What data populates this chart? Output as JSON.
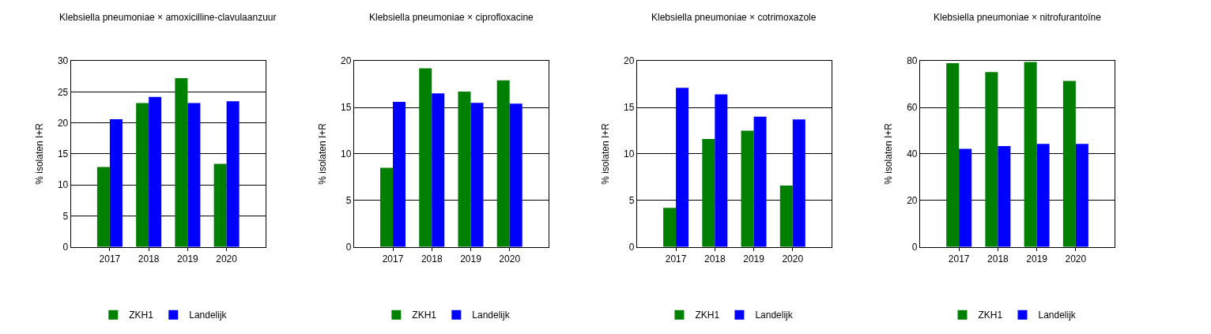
{
  "chart_data": [
    {
      "type": "bar",
      "title": "Klebsiella pneumoniae × amoxicilline-clavulaanzuur",
      "ylabel": "% isolaten I+R",
      "categories": [
        "2017",
        "2018",
        "2019",
        "2020"
      ],
      "ylim": [
        0,
        30
      ],
      "yticks": [
        0,
        5,
        10,
        15,
        20,
        25,
        30
      ],
      "grid": "y",
      "legend": "bottom",
      "series": [
        {
          "name": "ZKH1",
          "color": "#008000",
          "values": [
            12.9,
            23.2,
            27.2,
            13.4
          ]
        },
        {
          "name": "Landelijk",
          "color": "#0000ff",
          "values": [
            20.6,
            24.2,
            23.2,
            23.5
          ]
        }
      ]
    },
    {
      "type": "bar",
      "title": "Klebsiella pneumoniae × ciprofloxacine",
      "ylabel": "% isolaten I+R",
      "categories": [
        "2017",
        "2018",
        "2019",
        "2020"
      ],
      "ylim": [
        0,
        20
      ],
      "yticks": [
        0,
        5,
        10,
        15,
        20
      ],
      "grid": "y",
      "legend": "bottom",
      "series": [
        {
          "name": "ZKH1",
          "color": "#008000",
          "values": [
            8.5,
            19.2,
            16.7,
            17.9
          ]
        },
        {
          "name": "Landelijk",
          "color": "#0000ff",
          "values": [
            15.6,
            16.5,
            15.5,
            15.4
          ]
        }
      ]
    },
    {
      "type": "bar",
      "title": "Klebsiella pneumoniae × cotrimoxazole",
      "ylabel": "% isolaten I+R",
      "categories": [
        "2017",
        "2018",
        "2019",
        "2020"
      ],
      "ylim": [
        0,
        20
      ],
      "yticks": [
        0,
        5,
        10,
        15,
        20
      ],
      "grid": "y",
      "legend": "bottom",
      "series": [
        {
          "name": "ZKH1",
          "color": "#008000",
          "values": [
            4.2,
            11.6,
            12.5,
            6.6
          ]
        },
        {
          "name": "Landelijk",
          "color": "#0000ff",
          "values": [
            17.1,
            16.4,
            14.0,
            13.7
          ]
        }
      ]
    },
    {
      "type": "bar",
      "title": "Klebsiella pneumoniae × nitrofurantoïne",
      "ylabel": "% isolaten I+R",
      "categories": [
        "2017",
        "2018",
        "2019",
        "2020"
      ],
      "ylim": [
        0,
        80
      ],
      "yticks": [
        0,
        20,
        40,
        60,
        80
      ],
      "grid": "y",
      "legend": "bottom",
      "series": [
        {
          "name": "ZKH1",
          "color": "#008000",
          "values": [
            79,
            75.2,
            79.5,
            71.4
          ]
        },
        {
          "name": "Landelijk",
          "color": "#0000ff",
          "values": [
            42.2,
            43.4,
            44.3,
            44.3
          ]
        }
      ]
    }
  ]
}
